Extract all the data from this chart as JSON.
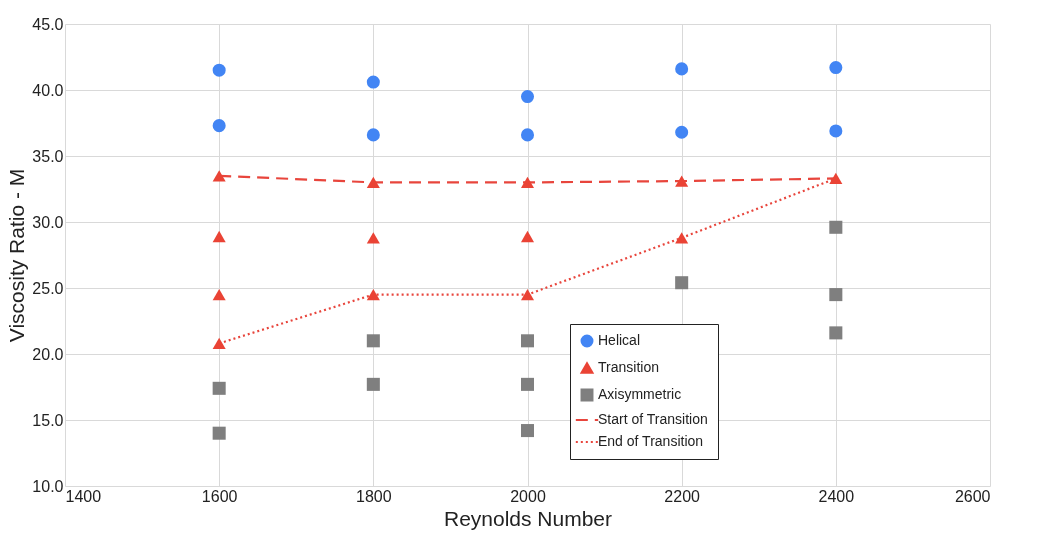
{
  "chart_data": {
    "type": "scatter",
    "xlabel": "Reynolds Number",
    "ylabel": "Viscosity Ratio - M",
    "xlim": [
      1400,
      2600
    ],
    "xticks": [
      1400,
      1600,
      1800,
      2000,
      2200,
      2400,
      2600
    ],
    "ylim": [
      10,
      45
    ],
    "yticks": [
      {
        "value": 10,
        "label": "10.0"
      },
      {
        "value": 15,
        "label": "15.0"
      },
      {
        "value": 20,
        "label": "20.0"
      },
      {
        "value": 25,
        "label": "25.0"
      },
      {
        "value": 30,
        "label": "30.0"
      },
      {
        "value": 35,
        "label": "35.0"
      },
      {
        "value": 40,
        "label": "40.0"
      },
      {
        "value": 45,
        "label": "45.0"
      }
    ],
    "grid": true,
    "legend": "bottom right",
    "series": [
      {
        "name": "Helical",
        "type": "scatter",
        "color": "#4285f4",
        "marker": "circle",
        "x": [
          1600,
          1600,
          1800,
          1800,
          2000,
          2000,
          2200,
          2200,
          2400,
          2400
        ],
        "values": [
          41.5,
          37.3,
          40.6,
          36.6,
          39.5,
          36.6,
          41.6,
          36.8,
          41.7,
          36.9
        ]
      },
      {
        "name": "Transition",
        "type": "scatter",
        "color": "#ea4335",
        "marker": "triangle",
        "x": [
          1600,
          1600,
          1600,
          1600,
          1800,
          1800,
          1800,
          2000,
          2000,
          2000,
          2200,
          2200,
          2400
        ],
        "values": [
          33.5,
          28.9,
          24.5,
          20.8,
          33.0,
          28.8,
          24.5,
          33.0,
          28.9,
          24.5,
          33.1,
          28.8,
          33.3
        ]
      },
      {
        "name": "Axisymmetric",
        "type": "scatter",
        "color": "#7f7f7f",
        "marker": "square",
        "x": [
          1600,
          1600,
          1800,
          1800,
          2000,
          2000,
          2000,
          2200,
          2400,
          2400,
          2400
        ],
        "values": [
          17.4,
          14.0,
          21.0,
          17.7,
          21.0,
          17.7,
          14.2,
          25.4,
          29.6,
          24.5,
          21.6
        ]
      },
      {
        "name": "Start of Transition",
        "type": "line",
        "color": "#e8453c",
        "line_style": "dashed",
        "marker": "none",
        "x": [
          1600,
          1800,
          2000,
          2200,
          2400
        ],
        "values": [
          33.5,
          33.0,
          33.0,
          33.1,
          33.3
        ]
      },
      {
        "name": "End of Transition",
        "type": "line",
        "color": "#e8453c",
        "line_style": "dotted",
        "marker": "none",
        "x": [
          1600,
          1800,
          2000,
          2200,
          2400
        ],
        "values": [
          20.8,
          24.5,
          24.5,
          28.8,
          33.3
        ]
      }
    ]
  }
}
